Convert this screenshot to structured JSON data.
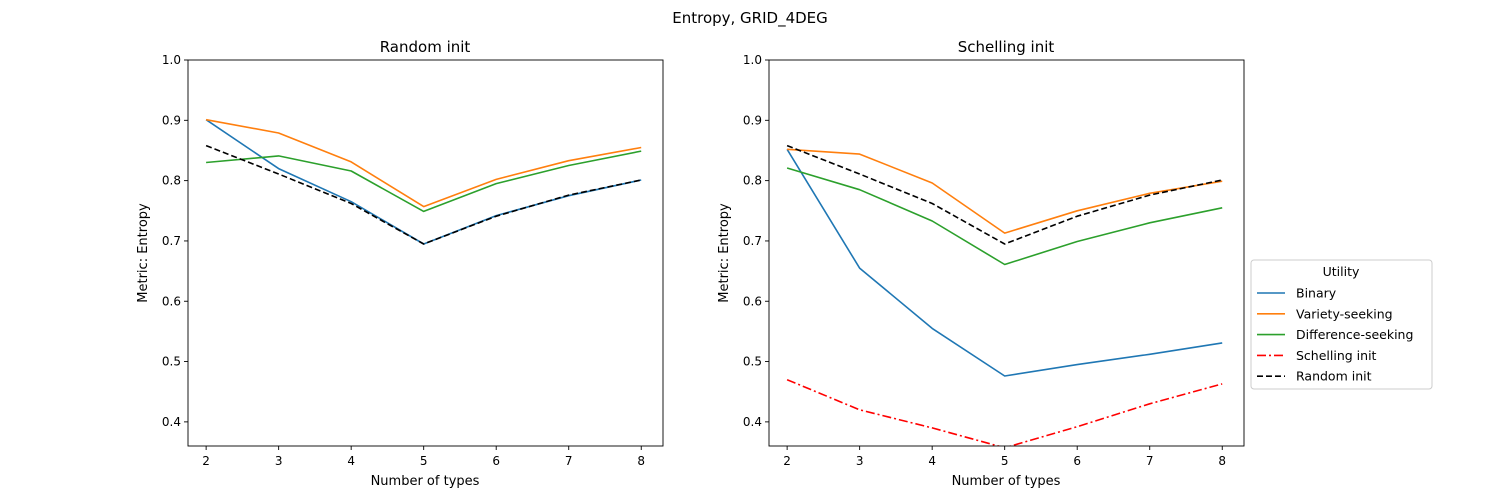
{
  "figure_title": "Entropy, GRID_4DEG",
  "legend": {
    "title": "Utility",
    "placement": "center-right",
    "entries": [
      {
        "label": "Binary",
        "color": "#1f77b4",
        "dash": "solid"
      },
      {
        "label": "Variety-seeking",
        "color": "#ff7f0e",
        "dash": "solid"
      },
      {
        "label": "Difference-seeking",
        "color": "#2ca02c",
        "dash": "solid"
      },
      {
        "label": "Schelling init",
        "color": "#ff0000",
        "dash": "dashdot"
      },
      {
        "label": "Random init",
        "color": "#000000",
        "dash": "dashed"
      }
    ]
  },
  "chart_data": [
    {
      "type": "line",
      "title": "Random init",
      "xlabel": "Number of types",
      "ylabel": "Metric: Entropy",
      "x": [
        2,
        3,
        4,
        5,
        6,
        7,
        8
      ],
      "xlim": [
        1.75,
        8.3
      ],
      "ylim": [
        0.36,
        1.0
      ],
      "xticks": [
        "2",
        "3",
        "4",
        "5",
        "6",
        "7",
        "8"
      ],
      "yticks": [
        "0.4",
        "0.5",
        "0.6",
        "0.7",
        "0.8",
        "0.9",
        "1.0"
      ],
      "grid": false,
      "series": [
        {
          "name": "Binary",
          "color": "#1f77b4",
          "dash": "solid",
          "values": [
            0.901,
            0.82,
            0.765,
            0.695,
            0.742,
            0.775,
            0.801
          ]
        },
        {
          "name": "Variety-seeking",
          "color": "#ff7f0e",
          "dash": "solid",
          "values": [
            0.901,
            0.879,
            0.831,
            0.757,
            0.802,
            0.833,
            0.855
          ]
        },
        {
          "name": "Difference-seeking",
          "color": "#2ca02c",
          "dash": "solid",
          "values": [
            0.83,
            0.841,
            0.816,
            0.749,
            0.795,
            0.825,
            0.849
          ]
        },
        {
          "name": "Random init",
          "color": "#000000",
          "dash": "dashed",
          "values": [
            0.858,
            0.811,
            0.762,
            0.695,
            0.741,
            0.776,
            0.801
          ]
        }
      ]
    },
    {
      "type": "line",
      "title": "Schelling init",
      "xlabel": "Number of types",
      "ylabel": "Metric: Entropy",
      "x": [
        2,
        3,
        4,
        5,
        6,
        7,
        8
      ],
      "xlim": [
        1.75,
        8.3
      ],
      "ylim": [
        0.36,
        1.0
      ],
      "xticks": [
        "2",
        "3",
        "4",
        "5",
        "6",
        "7",
        "8"
      ],
      "yticks": [
        "0.4",
        "0.5",
        "0.6",
        "0.7",
        "0.8",
        "0.9",
        "1.0"
      ],
      "grid": false,
      "series": [
        {
          "name": "Binary",
          "color": "#1f77b4",
          "dash": "solid",
          "values": [
            0.852,
            0.655,
            0.555,
            0.476,
            0.495,
            0.512,
            0.531
          ]
        },
        {
          "name": "Variety-seeking",
          "color": "#ff7f0e",
          "dash": "solid",
          "values": [
            0.852,
            0.844,
            0.796,
            0.713,
            0.75,
            0.779,
            0.799
          ]
        },
        {
          "name": "Difference-seeking",
          "color": "#2ca02c",
          "dash": "solid",
          "values": [
            0.821,
            0.785,
            0.733,
            0.661,
            0.699,
            0.73,
            0.755
          ]
        },
        {
          "name": "Schelling init",
          "color": "#ff0000",
          "dash": "dashdot",
          "values": [
            0.47,
            0.42,
            0.39,
            0.357,
            0.392,
            0.43,
            0.463
          ]
        },
        {
          "name": "Random init",
          "color": "#000000",
          "dash": "dashed",
          "values": [
            0.858,
            0.811,
            0.762,
            0.695,
            0.741,
            0.776,
            0.801
          ]
        }
      ]
    }
  ]
}
